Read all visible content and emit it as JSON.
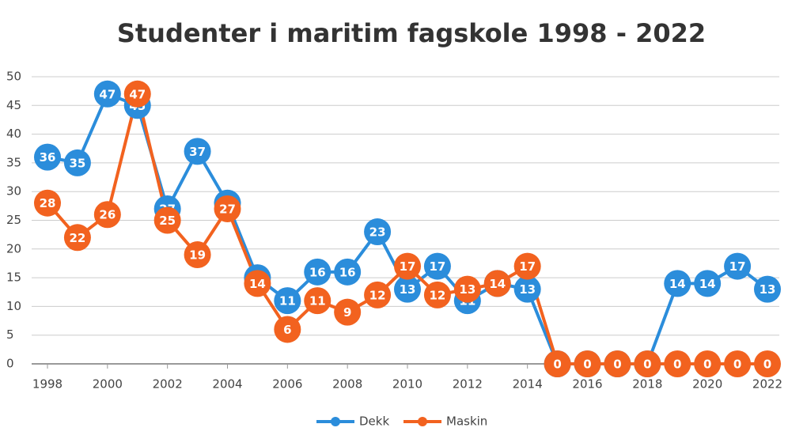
{
  "chart_data": {
    "type": "line",
    "title": "Studenter i maritim fagskole 1998 - 2022",
    "x": [
      1998,
      1999,
      2000,
      2001,
      2002,
      2003,
      2004,
      2005,
      2006,
      2007,
      2008,
      2009,
      2010,
      2011,
      2012,
      2013,
      2014,
      2015,
      2016,
      2017,
      2018,
      2019,
      2020,
      2021,
      2022
    ],
    "xlim": [
      1998,
      2022
    ],
    "xticks": [
      1998,
      2000,
      2002,
      2004,
      2006,
      2008,
      2010,
      2012,
      2014,
      2016,
      2018,
      2020,
      2022
    ],
    "ylim": [
      0,
      50
    ],
    "yticks": [
      0,
      5,
      10,
      15,
      20,
      25,
      30,
      35,
      40,
      45,
      50
    ],
    "grid": true,
    "legend": "bottom",
    "series": [
      {
        "name": "Dekk",
        "color": "#2b8ddb",
        "values": [
          36,
          35,
          47,
          45,
          27,
          37,
          28,
          15,
          11,
          16,
          16,
          23,
          13,
          17,
          11,
          14,
          13,
          0,
          0,
          0,
          0,
          14,
          14,
          17,
          13
        ]
      },
      {
        "name": "Maskin",
        "color": "#f2621f",
        "values": [
          28,
          22,
          26,
          47,
          25,
          19,
          27,
          14,
          6,
          11,
          9,
          12,
          17,
          12,
          13,
          14,
          17,
          0,
          0,
          0,
          0,
          0,
          0,
          0,
          0
        ]
      }
    ]
  }
}
